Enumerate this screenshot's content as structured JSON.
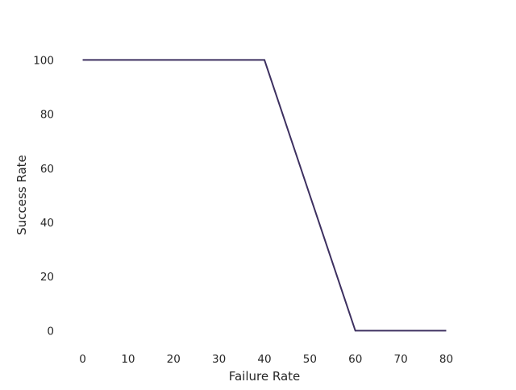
{
  "chart_data": {
    "type": "line",
    "title": "",
    "xlabel": "Failure Rate",
    "ylabel": "Success Rate",
    "xlim": [
      -4,
      84
    ],
    "ylim": [
      -5,
      105
    ],
    "xticks": [
      0,
      10,
      20,
      30,
      40,
      50,
      60,
      70,
      80
    ],
    "yticks": [
      0,
      20,
      40,
      60,
      80,
      100
    ],
    "grid": false,
    "series": [
      {
        "x": [
          0,
          10,
          20,
          30,
          40,
          50,
          60,
          70,
          80
        ],
        "y": [
          100,
          100,
          100,
          100,
          100,
          50,
          0,
          0,
          0
        ],
        "color": "#3d3060"
      }
    ]
  }
}
